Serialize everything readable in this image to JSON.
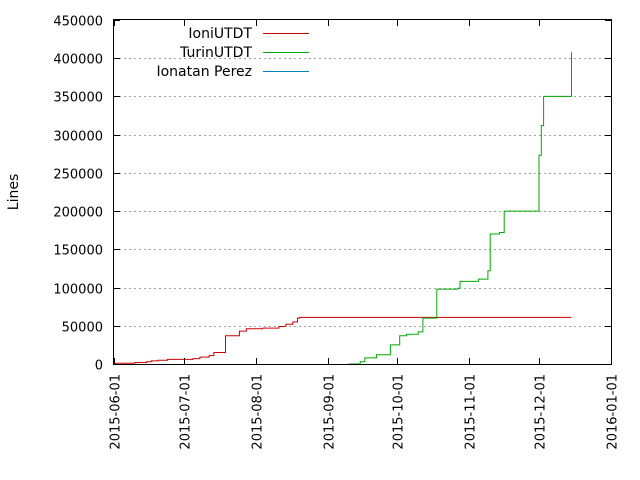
{
  "chart_data": {
    "type": "line",
    "ylabel": "Lines",
    "xlabel": "",
    "ylim": [
      0,
      450000
    ],
    "xlim": [
      "2015-06-01",
      "2016-01-01"
    ],
    "y_ticks": [
      0,
      50000,
      100000,
      150000,
      200000,
      250000,
      300000,
      350000,
      400000,
      450000
    ],
    "x_ticks": [
      "2015-06-01",
      "2015-07-01",
      "2015-08-01",
      "2015-09-01",
      "2015-10-01",
      "2015-11-01",
      "2015-12-01",
      "2016-01-01"
    ],
    "grid": "horizontal dashed",
    "legend_position": "top-left",
    "series": [
      {
        "name": "IoniUTDT",
        "color": "#cc0000",
        "points": [
          [
            "2015-06-01",
            1000
          ],
          [
            "2015-06-10",
            2000
          ],
          [
            "2015-06-15",
            3000
          ],
          [
            "2015-06-17",
            4000
          ],
          [
            "2015-06-20",
            5000
          ],
          [
            "2015-06-24",
            6000
          ],
          [
            "2015-07-05",
            7000
          ],
          [
            "2015-07-08",
            9000
          ],
          [
            "2015-07-12",
            11000
          ],
          [
            "2015-07-14",
            15000
          ],
          [
            "2015-07-19",
            37000
          ],
          [
            "2015-07-25",
            43000
          ],
          [
            "2015-07-28",
            46000
          ],
          [
            "2015-08-04",
            47000
          ],
          [
            "2015-08-11",
            49000
          ],
          [
            "2015-08-14",
            52000
          ],
          [
            "2015-08-17",
            55000
          ],
          [
            "2015-08-19",
            60000
          ],
          [
            "2015-08-20",
            61000
          ],
          [
            "2015-12-15",
            61000
          ]
        ]
      },
      {
        "name": "TurinUTDT",
        "color": "#00aa00",
        "points": [
          [
            "2015-09-10",
            0
          ],
          [
            "2015-09-15",
            3000
          ],
          [
            "2015-09-17",
            8000
          ],
          [
            "2015-09-22",
            12000
          ],
          [
            "2015-09-28",
            25000
          ],
          [
            "2015-10-02",
            37000
          ],
          [
            "2015-10-05",
            39000
          ],
          [
            "2015-10-10",
            42000
          ],
          [
            "2015-10-12",
            60000
          ],
          [
            "2015-10-18",
            98000
          ],
          [
            "2015-10-27",
            99000
          ],
          [
            "2015-10-28",
            108000
          ],
          [
            "2015-11-05",
            111000
          ],
          [
            "2015-11-09",
            122000
          ],
          [
            "2015-11-10",
            170000
          ],
          [
            "2015-11-14",
            172000
          ],
          [
            "2015-11-16",
            200000
          ],
          [
            "2015-12-01",
            273000
          ],
          [
            "2015-12-02",
            312000
          ],
          [
            "2015-12-03",
            350000
          ],
          [
            "2015-12-05",
            350000
          ],
          [
            "2015-12-15",
            408000
          ]
        ]
      },
      {
        "name": "Ionatan Perez",
        "color": "#0080c0",
        "points": []
      }
    ]
  }
}
